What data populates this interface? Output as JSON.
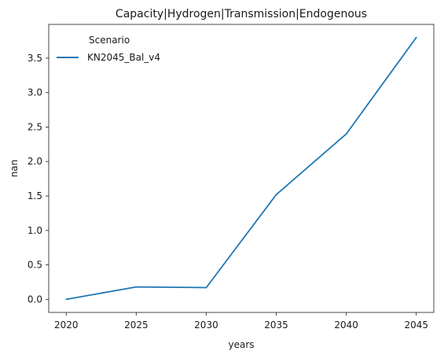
{
  "chart_data": {
    "type": "line",
    "title": "Capacity|Hydrogen|Transmission|Endogenous",
    "xlabel": "years",
    "ylabel": "nan",
    "x": [
      2020,
      2025,
      2030,
      2035,
      2040,
      2045
    ],
    "xticks": [
      "2020",
      "2025",
      "2030",
      "2035",
      "2040",
      "2045"
    ],
    "yticks": [
      "0.0",
      "0.5",
      "1.0",
      "1.5",
      "2.0",
      "2.5",
      "3.0",
      "3.5"
    ],
    "xlim": [
      2018.75,
      2046.25
    ],
    "ylim": [
      -0.19,
      3.99
    ],
    "grid": false,
    "legend": {
      "title": "Scenario",
      "placement": "top-left"
    },
    "series": [
      {
        "name": "KN2045_Bal_v4",
        "color": "#1f77b4",
        "values": [
          0.0,
          0.18,
          0.17,
          1.52,
          2.4,
          3.8
        ]
      }
    ]
  }
}
